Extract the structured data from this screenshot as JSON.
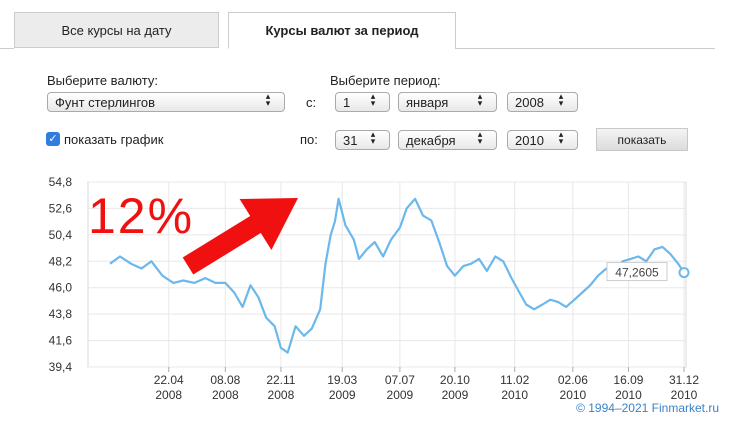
{
  "tabs": [
    "Все курсы на дату",
    "Курсы валют за период"
  ],
  "form": {
    "currency_label": "Выберите валюту:",
    "currency": "Фунт стерлингов",
    "period_label": "Выберите период:",
    "from_label": "с:",
    "from": [
      "1",
      "января",
      "2008"
    ],
    "to_label": "по:",
    "to": [
      "31",
      "декабря",
      "2010"
    ],
    "show_chart": "показать график",
    "button": "показать"
  },
  "chart_data": {
    "type": "line",
    "color": "#6cb8ec",
    "x": [
      "2008-01-01",
      "2008-01-20",
      "2008-02-10",
      "2008-03-01",
      "2008-03-20",
      "2008-04-10",
      "2008-05-01",
      "2008-05-20",
      "2008-06-10",
      "2008-07-01",
      "2008-07-20",
      "2008-08-08",
      "2008-08-25",
      "2008-09-10",
      "2008-09-25",
      "2008-10-10",
      "2008-10-25",
      "2008-11-10",
      "2008-11-22",
      "2008-12-05",
      "2008-12-20",
      "2009-01-05",
      "2009-01-20",
      "2009-02-05",
      "2009-02-15",
      "2009-02-25",
      "2009-03-05",
      "2009-03-12",
      "2009-03-25",
      "2009-04-10",
      "2009-04-20",
      "2009-05-05",
      "2009-05-20",
      "2009-06-05",
      "2009-06-20",
      "2009-07-07",
      "2009-07-20",
      "2009-08-05",
      "2009-08-20",
      "2009-09-05",
      "2009-09-20",
      "2009-10-05",
      "2009-10-20",
      "2009-11-05",
      "2009-11-20",
      "2009-12-05",
      "2009-12-20",
      "2010-01-05",
      "2010-01-20",
      "2010-02-05",
      "2010-02-20",
      "2010-03-05",
      "2010-03-20",
      "2010-04-05",
      "2010-04-20",
      "2010-05-05",
      "2010-05-20",
      "2010-06-05",
      "2010-06-20",
      "2010-07-05",
      "2010-07-20",
      "2010-08-05",
      "2010-08-20",
      "2010-09-05",
      "2010-09-20",
      "2010-10-05",
      "2010-10-20",
      "2010-11-05",
      "2010-11-20",
      "2010-12-05",
      "2010-12-20",
      "2010-12-31"
    ],
    "values": [
      48.0,
      48.6,
      48.0,
      47.6,
      48.2,
      47.0,
      46.4,
      46.6,
      46.4,
      46.8,
      46.4,
      46.4,
      45.6,
      44.4,
      46.2,
      45.2,
      43.5,
      42.8,
      41.0,
      40.6,
      42.8,
      42.0,
      42.6,
      44.2,
      48.0,
      50.4,
      51.5,
      53.4,
      51.2,
      50.0,
      48.4,
      49.2,
      49.8,
      48.6,
      50.0,
      51.0,
      52.6,
      53.4,
      52.0,
      51.6,
      49.8,
      47.8,
      47.0,
      47.8,
      48.0,
      48.4,
      47.4,
      48.6,
      48.2,
      46.8,
      45.6,
      44.6,
      44.2,
      44.6,
      45.0,
      44.8,
      44.4,
      45.0,
      45.6,
      46.2,
      47.0,
      47.6,
      47.4,
      48.2,
      48.4,
      48.6,
      48.2,
      49.2,
      49.4,
      48.8,
      48.0,
      47.2605
    ],
    "xlim": [
      "2007-11-20",
      "2010-12-31"
    ],
    "xticks": [
      {
        "value": "2008-04-22",
        "label": [
          "22.04",
          "2008"
        ]
      },
      {
        "value": "2008-08-08",
        "label": [
          "08.08",
          "2008"
        ]
      },
      {
        "value": "2008-11-22",
        "label": [
          "22.11",
          "2008"
        ]
      },
      {
        "value": "2009-03-19",
        "label": [
          "19.03",
          "2009"
        ]
      },
      {
        "value": "2009-07-07",
        "label": [
          "07.07",
          "2009"
        ]
      },
      {
        "value": "2009-10-20",
        "label": [
          "20.10",
          "2009"
        ]
      },
      {
        "value": "2010-02-11",
        "label": [
          "11.02",
          "2010"
        ]
      },
      {
        "value": "2010-06-02",
        "label": [
          "02.06",
          "2010"
        ]
      },
      {
        "value": "2010-09-16",
        "label": [
          "16.09",
          "2010"
        ]
      },
      {
        "value": "2010-12-31",
        "label": [
          "31.12",
          "2010"
        ]
      }
    ],
    "ylim": [
      39.4,
      54.8
    ],
    "yticks": [
      {
        "value": 39.4,
        "label": "39,4"
      },
      {
        "value": 41.6,
        "label": "41,6"
      },
      {
        "value": 43.8,
        "label": "43,8"
      },
      {
        "value": 46.0,
        "label": "46,0"
      },
      {
        "value": 48.2,
        "label": "48,2"
      },
      {
        "value": 50.4,
        "label": "50,4"
      },
      {
        "value": 52.6,
        "label": "52,6"
      },
      {
        "value": 54.8,
        "label": "54,8"
      }
    ],
    "grid": true,
    "end_label": {
      "value": 47.2605,
      "label": "47,2605"
    },
    "annotation": "12%",
    "copyright": "© 1994–2021 Finmarket.ru"
  }
}
